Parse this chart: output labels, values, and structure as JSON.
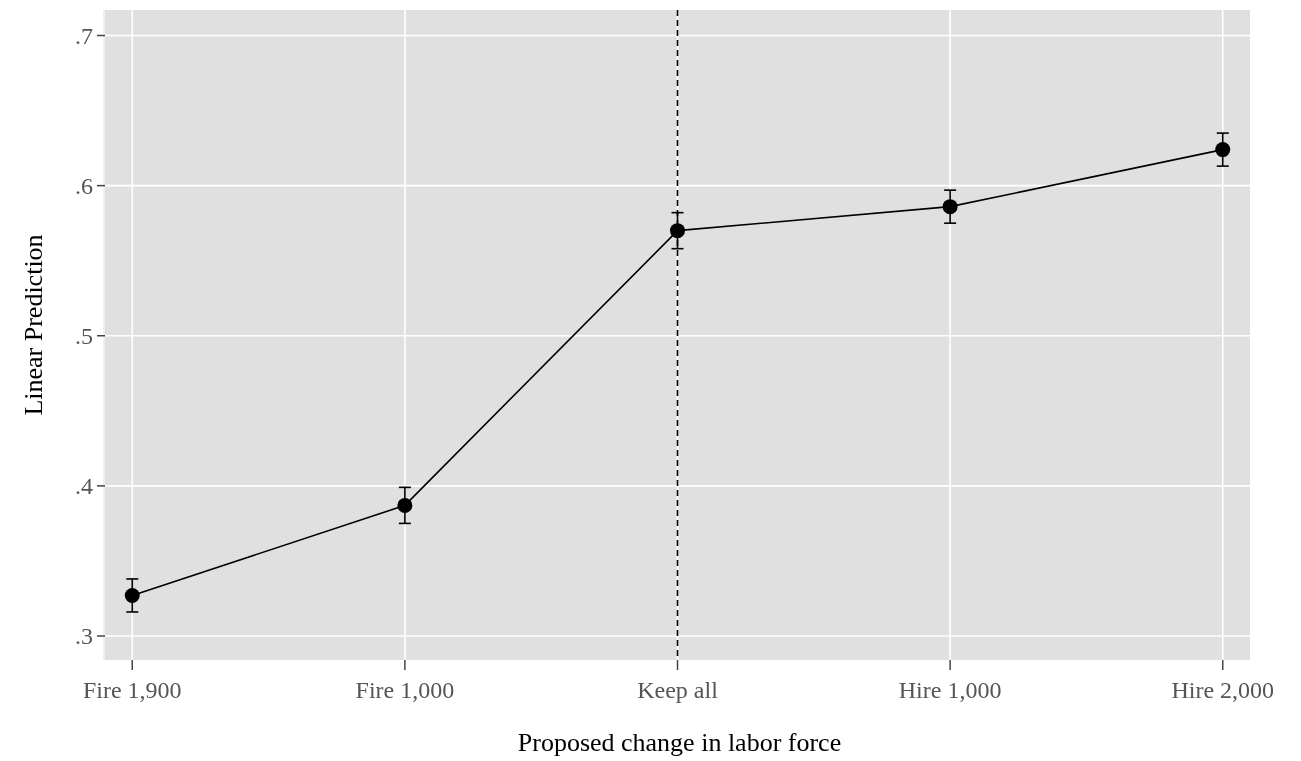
{
  "chart_data": {
    "type": "line",
    "xlabel": "Proposed change in labor force",
    "ylabel": "Linear Prediction",
    "categories": [
      "Fire 1,900",
      "Fire 1,000",
      "Keep all",
      "Hire 1,000",
      "Hire 2,000"
    ],
    "series": [
      {
        "color": "#000000",
        "values": [
          0.327,
          0.387,
          0.57,
          0.586,
          0.624
        ],
        "errors": [
          0.011,
          0.012,
          0.012,
          0.011,
          0.011
        ]
      }
    ],
    "ylim": [
      0.284,
      0.717
    ],
    "yticks": [
      {
        "value": 0.3,
        "label": ".3"
      },
      {
        "value": 0.4,
        "label": ".4"
      },
      {
        "value": 0.5,
        "label": ".5"
      },
      {
        "value": 0.6,
        "label": ".6"
      },
      {
        "value": 0.7,
        "label": ".7"
      }
    ],
    "ref_lines": [
      {
        "axis": "x",
        "value": "Keep all",
        "line_style": "dashed",
        "color": "#000000"
      }
    ],
    "grid": true,
    "marker": "circle",
    "line_style": "solid"
  }
}
